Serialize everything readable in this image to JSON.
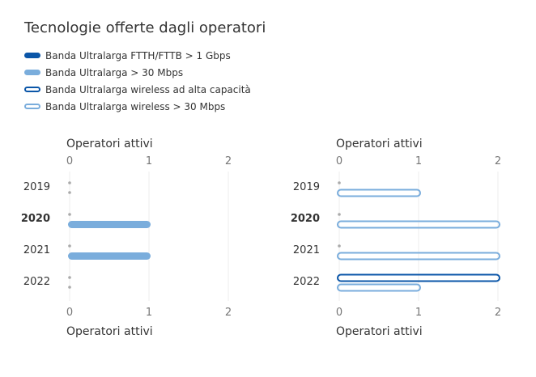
{
  "title": "Tecnologie offerte dagli operatori",
  "legend": [
    {
      "label": "Banda Ultralarga FTTH/FTTB > 1 Gbps",
      "color": "#0b56a8",
      "style": "filled"
    },
    {
      "label": "Banda Ultralarga > 30 Mbps",
      "color": "#7aaddc",
      "style": "filled"
    },
    {
      "label": "Banda Ultralarga wireless ad alta capacità",
      "color": "#0b56a8",
      "style": "outline"
    },
    {
      "label": "Banda Ultralarga wireless > 30 Mbps",
      "color": "#7aaddc",
      "style": "outline"
    }
  ],
  "chart_data": [
    {
      "type": "bar",
      "orientation": "horizontal",
      "xlabel": "Operatori attivi",
      "xlim": [
        0,
        2
      ],
      "xticks": [
        "0",
        "1",
        "2"
      ],
      "categories": [
        "2019",
        "2020",
        "2021",
        "2022"
      ],
      "highlight_category": "2020",
      "series": [
        {
          "name": "Banda Ultralarga FTTH/FTTB > 1 Gbps",
          "values": [
            0,
            0,
            0,
            0
          ],
          "color": "#0b56a8",
          "style": "filled"
        },
        {
          "name": "Banda Ultralarga > 30 Mbps",
          "values": [
            0,
            1,
            1,
            0
          ],
          "color": "#7aaddc",
          "style": "filled"
        }
      ]
    },
    {
      "type": "bar",
      "orientation": "horizontal",
      "xlabel": "Operatori attivi",
      "xlim": [
        0,
        2
      ],
      "xticks": [
        "0",
        "1",
        "2"
      ],
      "categories": [
        "2019",
        "2020",
        "2021",
        "2022"
      ],
      "highlight_category": "2020",
      "series": [
        {
          "name": "Banda Ultralarga wireless ad alta capacità",
          "values": [
            0,
            0,
            0,
            2
          ],
          "color": "#0b56a8",
          "style": "outline"
        },
        {
          "name": "Banda Ultralarga wireless > 30 Mbps",
          "values": [
            1,
            2,
            2,
            1
          ],
          "color": "#7aaddc",
          "style": "outline"
        }
      ]
    }
  ]
}
